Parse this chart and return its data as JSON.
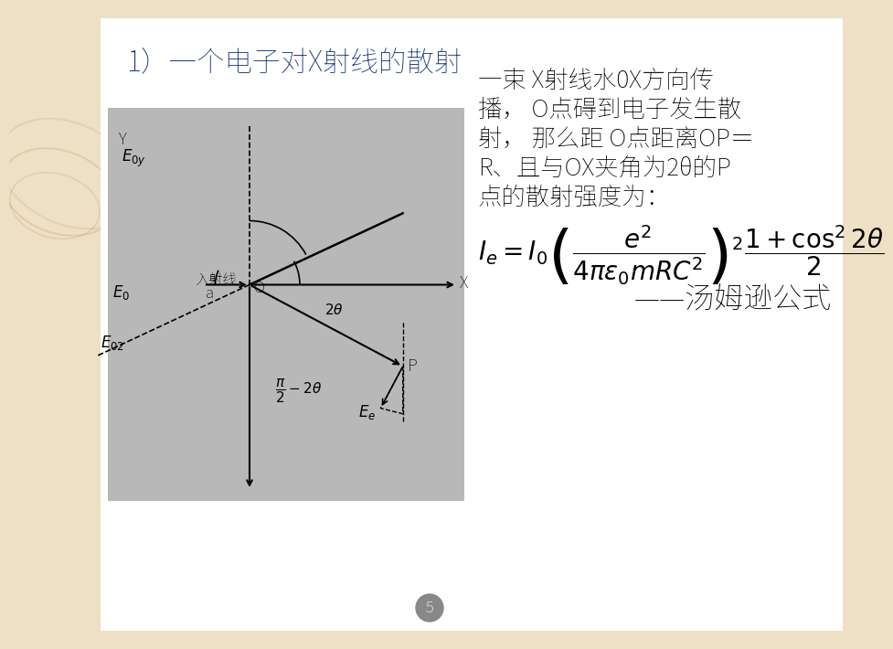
{
  "bg_color": "#ede0c4",
  "slide_bg": "#ffffff",
  "diagram_bg": "#b8b8b8",
  "title_text": "1）一个电子对X射线的散射",
  "title_color": "#1a3a7a",
  "title_fontsize": 22,
  "body_lines": [
    "一束 X射线水0X方向传",
    "播， O点碍到电子发生散",
    "射， 那么距 O点距离OP＝",
    "R、且与OX夹角为2θ的P",
    "点的散射强度为："
  ],
  "body_color": "#000000",
  "body_fontsize": 19,
  "formula_str": "$I_e = I_0\\left(\\dfrac{e^2}{4\\pi\\varepsilon_0 mRC^2}\\right)^2 \\dfrac{1+\\cos^2 2\\theta}{2}$",
  "formula_color": "#000000",
  "formula_fontsize": 20,
  "thomson_text": "——汤姆逊公式",
  "thomson_color": "#000000",
  "thomson_fontsize": 23,
  "page_num": "5",
  "two_theta_deg": 28,
  "alpha_deg": 155
}
